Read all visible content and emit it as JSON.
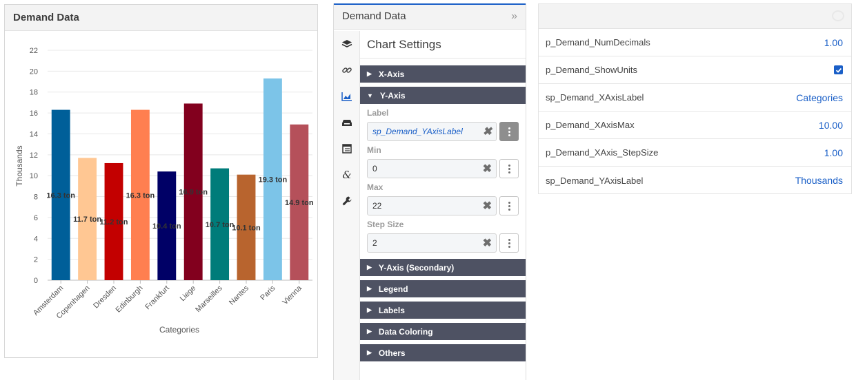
{
  "chart_widget": {
    "title": "Demand Data"
  },
  "chart_data": {
    "type": "bar",
    "title": "",
    "xlabel": "Categories",
    "ylabel": "Thousands",
    "ylim": [
      0,
      22
    ],
    "yticks": [
      "0",
      "2",
      "4",
      "6",
      "8",
      "10",
      "12",
      "14",
      "16",
      "18",
      "20",
      "22"
    ],
    "grid": true,
    "legend": "none",
    "categories": [
      "Amsterdam",
      "Copenhagen",
      "Dresden",
      "Edinburgh",
      "Frankfurt",
      "Liege",
      "Marseilles",
      "Nantes",
      "Paris",
      "Vienna"
    ],
    "values": [
      16.3,
      11.7,
      11.2,
      16.3,
      10.4,
      16.9,
      10.7,
      10.1,
      19.3,
      14.9
    ],
    "data_labels": [
      "16.3 ton",
      "11.7 ton",
      "11.2 ton",
      "16.3 ton",
      "10.4 ton",
      "16.9 ton",
      "10.7 ton",
      "10.1 ton",
      "19.3 ton",
      "14.9 ton"
    ],
    "colors": [
      "#005f99",
      "#ffc793",
      "#c30000",
      "#ff7f50",
      "#000066",
      "#82001e",
      "#007c7a",
      "#b8642e",
      "#7cc4e8",
      "#b5505a"
    ]
  },
  "settings": {
    "panel_title": "Demand Data",
    "section_title": "Chart Settings",
    "rail_icons": [
      "layers-icon",
      "link-icon",
      "chart-area-icon",
      "inbox-icon",
      "table-icon",
      "ampersand-icon",
      "wrench-icon"
    ],
    "sections": {
      "x_axis": "X-Axis",
      "y_axis": "Y-Axis",
      "y_axis_secondary": "Y-Axis (Secondary)",
      "legend": "Legend",
      "labels": "Labels",
      "data_coloring": "Data Coloring",
      "others": "Others"
    },
    "fields": {
      "label": {
        "label": "Label",
        "value": "sp_Demand_YAxisLabel"
      },
      "min": {
        "label": "Min",
        "value": "0"
      },
      "max": {
        "label": "Max",
        "value": "22"
      },
      "step": {
        "label": "Step Size",
        "value": "2"
      }
    }
  },
  "params": {
    "rows": [
      {
        "name": "p_Demand_NumDecimals",
        "value": "1.00"
      },
      {
        "name": "p_Demand_ShowUnits",
        "value": ""
      },
      {
        "name": "sp_Demand_XAxisLabel",
        "value": "Categories"
      },
      {
        "name": "p_Demand_XAxisMax",
        "value": "10.00"
      },
      {
        "name": "p_Demand_XAxis_StepSize",
        "value": "1.00"
      },
      {
        "name": "sp_Demand_YAxisLabel",
        "value": "Thousands"
      }
    ],
    "show_units_checked": true
  },
  "colors": {
    "accent": "#1a5fc7",
    "accordion": "#4e5263"
  }
}
